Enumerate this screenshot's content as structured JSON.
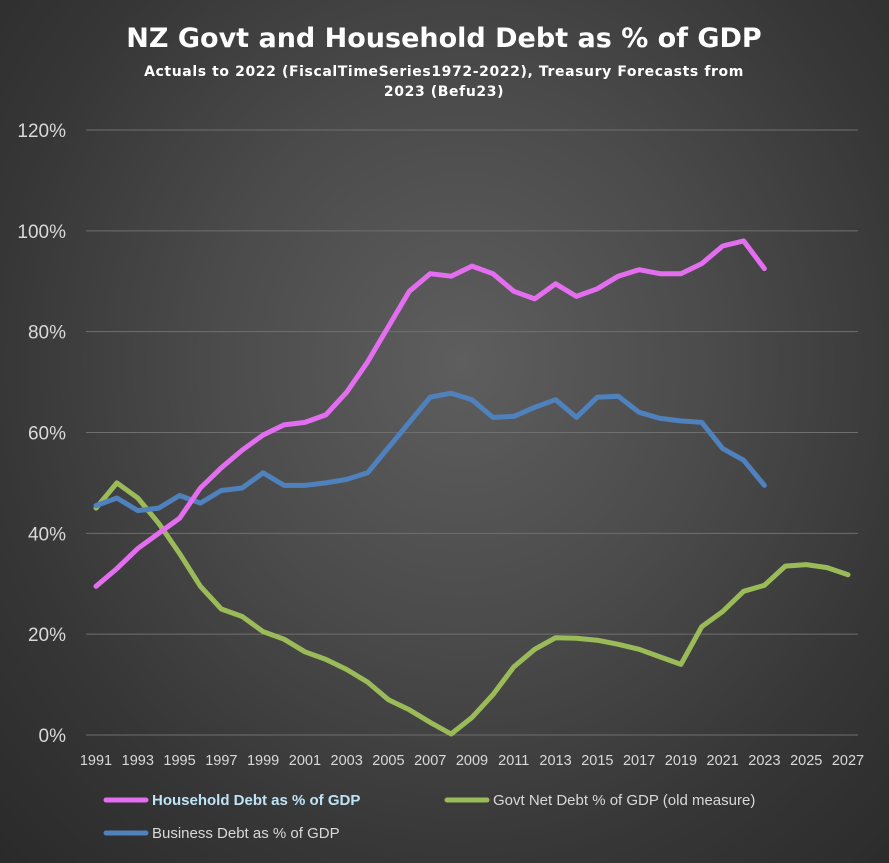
{
  "chart_data": {
    "type": "line",
    "title": "NZ Govt and Household Debt as % of GDP",
    "subtitle_lines": [
      "Actuals to 2022 (FiscalTimeSeries1972-2022), Treasury Forecasts from",
      "2023 (Befu23)"
    ],
    "xlabel": "",
    "ylabel": "",
    "ylim": [
      0,
      120
    ],
    "y_ticks": [
      0,
      20,
      40,
      60,
      80,
      100,
      120
    ],
    "y_tick_labels": [
      "0%",
      "20%",
      "40%",
      "60%",
      "80%",
      "100%",
      "120%"
    ],
    "x_tick_labels": [
      "1991",
      "1993",
      "1995",
      "1997",
      "1999",
      "2001",
      "2003",
      "2005",
      "2007",
      "2009",
      "2011",
      "2013",
      "2015",
      "2017",
      "2019",
      "2021",
      "2023",
      "2025",
      "2027"
    ],
    "x_range": [
      1991,
      2027
    ],
    "grid": true,
    "legend_position": "bottom",
    "series": [
      {
        "name": "Household Debt as % of GDP",
        "color": "#e36ef0",
        "highlighted": true,
        "x": [
          1991,
          1992,
          1993,
          1994,
          1995,
          1996,
          1997,
          1998,
          1999,
          2000,
          2001,
          2002,
          2003,
          2004,
          2005,
          2006,
          2007,
          2008,
          2009,
          2010,
          2011,
          2012,
          2013,
          2014,
          2015,
          2016,
          2017,
          2018,
          2019,
          2020,
          2021,
          2022,
          2023
        ],
        "values": [
          29.5,
          33,
          37,
          40,
          43,
          49,
          53,
          56.5,
          59.5,
          61.5,
          62,
          63.5,
          68,
          74,
          81,
          88,
          91.5,
          91,
          93,
          91.5,
          88,
          86.5,
          89.5,
          87,
          88.5,
          91,
          92.3,
          91.5,
          91.5,
          93.5,
          97,
          98,
          92.5
        ]
      },
      {
        "name": "Govt Net Debt % of GDP (old measure)",
        "color": "#9bbb59",
        "highlighted": false,
        "x": [
          1991,
          1992,
          1993,
          1994,
          1995,
          1996,
          1997,
          1998,
          1999,
          2000,
          2001,
          2002,
          2003,
          2004,
          2005,
          2006,
          2007,
          2008,
          2009,
          2010,
          2011,
          2012,
          2013,
          2014,
          2015,
          2016,
          2017,
          2018,
          2019,
          2020,
          2021,
          2022,
          2023,
          2024,
          2025,
          2026,
          2027
        ],
        "values": [
          45,
          50,
          47,
          42,
          36,
          29.5,
          25,
          23.5,
          20.5,
          19,
          16.5,
          15,
          13,
          10.5,
          7,
          5,
          2.5,
          0.2,
          3.5,
          8,
          13.5,
          17,
          19.3,
          19.2,
          18.8,
          18,
          17,
          15.5,
          14,
          21.5,
          24.5,
          28.5,
          29.7,
          33.5,
          33.8,
          33.2,
          31.8
        ]
      },
      {
        "name": "Business Debt as % of GDP",
        "color": "#4f81bd",
        "highlighted": false,
        "x": [
          1991,
          1992,
          1993,
          1994,
          1995,
          1996,
          1997,
          1998,
          1999,
          2000,
          2001,
          2002,
          2003,
          2004,
          2005,
          2006,
          2007,
          2008,
          2009,
          2010,
          2011,
          2012,
          2013,
          2014,
          2015,
          2016,
          2017,
          2018,
          2019,
          2020,
          2021,
          2022,
          2023
        ],
        "values": [
          45.5,
          47,
          44.5,
          45,
          47.5,
          46,
          48.5,
          49,
          52,
          49.5,
          49.5,
          50,
          50.7,
          52,
          57,
          62,
          67,
          67.8,
          66.5,
          63,
          63.2,
          65,
          66.5,
          63,
          67,
          67.2,
          64,
          62.8,
          62.3,
          62,
          56.8,
          54.5,
          49.5
        ]
      }
    ]
  }
}
